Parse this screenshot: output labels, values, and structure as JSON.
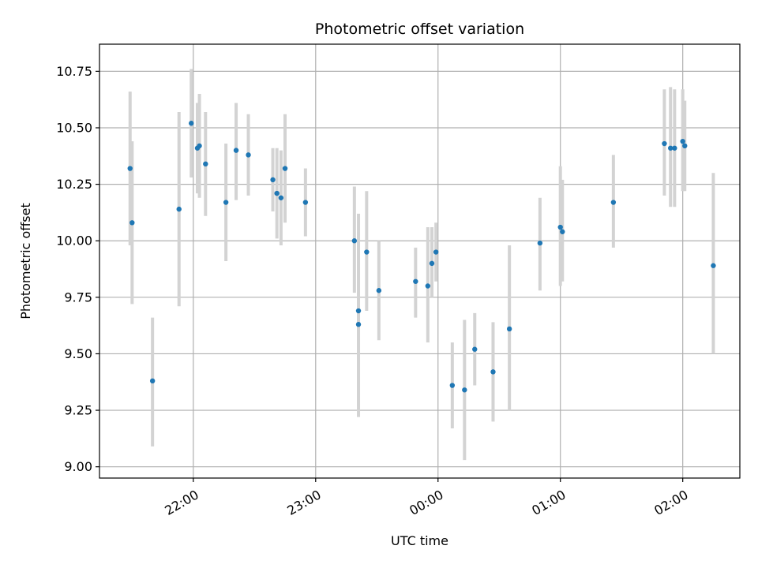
{
  "chart_data": {
    "type": "scatter",
    "title": "Photometric offset variation",
    "xlabel": "UTC time",
    "ylabel": "Photometric offset",
    "x_unit": "HH:MM (UTC, relative to midnight)",
    "xlim": [
      "21:14",
      "02:28"
    ],
    "ylim": [
      8.95,
      10.87
    ],
    "x_ticks": [
      "22:00",
      "23:00",
      "00:00",
      "01:00",
      "02:00"
    ],
    "y_ticks": [
      "9.00",
      "9.25",
      "9.50",
      "9.75",
      "10.00",
      "10.25",
      "10.50",
      "10.75"
    ],
    "grid": true,
    "colors": {
      "point": "#1f77b4",
      "errorbar": "#d3d3d3",
      "grid": "#b0b0b0"
    },
    "series": [
      {
        "points": [
          {
            "x": "21:29",
            "y": 10.32,
            "ylo": 9.98,
            "yhi": 10.66
          },
          {
            "x": "21:30",
            "y": 10.08,
            "ylo": 9.72,
            "yhi": 10.44
          },
          {
            "x": "21:40",
            "y": 9.38,
            "ylo": 9.09,
            "yhi": 9.66
          },
          {
            "x": "21:53",
            "y": 10.14,
            "ylo": 9.71,
            "yhi": 10.57
          },
          {
            "x": "21:59",
            "y": 10.52,
            "ylo": 10.28,
            "yhi": 10.76
          },
          {
            "x": "22:02",
            "y": 10.41,
            "ylo": 10.21,
            "yhi": 10.61
          },
          {
            "x": "22:03",
            "y": 10.42,
            "ylo": 10.19,
            "yhi": 10.65
          },
          {
            "x": "22:06",
            "y": 10.34,
            "ylo": 10.11,
            "yhi": 10.57
          },
          {
            "x": "22:16",
            "y": 10.17,
            "ylo": 9.91,
            "yhi": 10.43
          },
          {
            "x": "22:21",
            "y": 10.4,
            "ylo": 10.18,
            "yhi": 10.61
          },
          {
            "x": "22:27",
            "y": 10.38,
            "ylo": 10.2,
            "yhi": 10.56
          },
          {
            "x": "22:39",
            "y": 10.27,
            "ylo": 10.13,
            "yhi": 10.41
          },
          {
            "x": "22:41",
            "y": 10.21,
            "ylo": 10.01,
            "yhi": 10.41
          },
          {
            "x": "22:43",
            "y": 10.19,
            "ylo": 9.98,
            "yhi": 10.4
          },
          {
            "x": "22:45",
            "y": 10.32,
            "ylo": 10.08,
            "yhi": 10.56
          },
          {
            "x": "22:55",
            "y": 10.17,
            "ylo": 10.02,
            "yhi": 10.32
          },
          {
            "x": "23:19",
            "y": 10.0,
            "ylo": 9.77,
            "yhi": 10.24
          },
          {
            "x": "23:21",
            "y": 9.69,
            "ylo": 9.27,
            "yhi": 10.12
          },
          {
            "x": "23:21",
            "y": 9.63,
            "ylo": 9.22,
            "yhi": 10.04
          },
          {
            "x": "23:25",
            "y": 9.95,
            "ylo": 9.69,
            "yhi": 10.22
          },
          {
            "x": "23:31",
            "y": 9.78,
            "ylo": 9.56,
            "yhi": 10.0
          },
          {
            "x": "23:49",
            "y": 9.82,
            "ylo": 9.66,
            "yhi": 9.97
          },
          {
            "x": "23:55",
            "y": 9.8,
            "ylo": 9.55,
            "yhi": 10.06
          },
          {
            "x": "23:57",
            "y": 9.9,
            "ylo": 9.75,
            "yhi": 10.06
          },
          {
            "x": "23:59",
            "y": 9.95,
            "ylo": 9.82,
            "yhi": 10.08
          },
          {
            "x": "00:07",
            "y": 9.36,
            "ylo": 9.17,
            "yhi": 9.55
          },
          {
            "x": "00:13",
            "y": 9.34,
            "ylo": 9.03,
            "yhi": 9.65
          },
          {
            "x": "00:18",
            "y": 9.52,
            "ylo": 9.36,
            "yhi": 9.68
          },
          {
            "x": "00:27",
            "y": 9.42,
            "ylo": 9.2,
            "yhi": 9.64
          },
          {
            "x": "00:35",
            "y": 9.61,
            "ylo": 9.25,
            "yhi": 9.98
          },
          {
            "x": "00:50",
            "y": 9.99,
            "ylo": 9.78,
            "yhi": 10.19
          },
          {
            "x": "01:00",
            "y": 10.06,
            "ylo": 9.8,
            "yhi": 10.33
          },
          {
            "x": "01:01",
            "y": 10.04,
            "ylo": 9.82,
            "yhi": 10.27
          },
          {
            "x": "01:26",
            "y": 10.17,
            "ylo": 9.97,
            "yhi": 10.38
          },
          {
            "x": "01:51",
            "y": 10.43,
            "ylo": 10.2,
            "yhi": 10.67
          },
          {
            "x": "01:54",
            "y": 10.41,
            "ylo": 10.15,
            "yhi": 10.68
          },
          {
            "x": "01:56",
            "y": 10.41,
            "ylo": 10.15,
            "yhi": 10.67
          },
          {
            "x": "02:00",
            "y": 10.44,
            "ylo": 10.22,
            "yhi": 10.67
          },
          {
            "x": "02:01",
            "y": 10.42,
            "ylo": 10.22,
            "yhi": 10.62
          },
          {
            "x": "02:15",
            "y": 9.89,
            "ylo": 9.5,
            "yhi": 10.3
          }
        ]
      }
    ]
  }
}
